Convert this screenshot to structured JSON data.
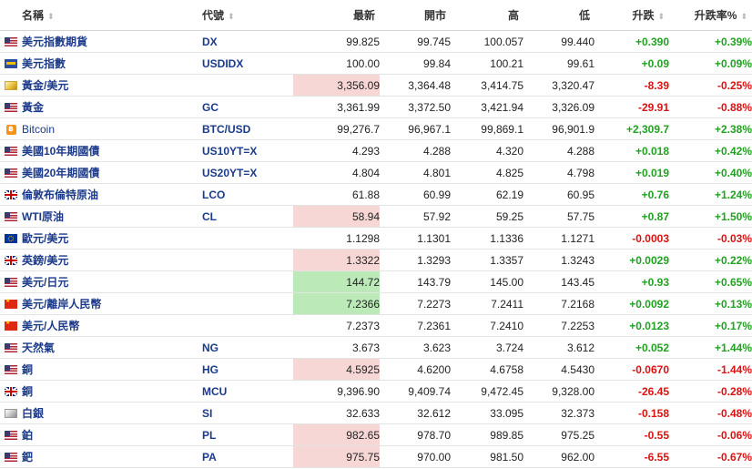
{
  "columns": {
    "name": "名稱",
    "symbol": "代號",
    "last": "最新",
    "open": "開市",
    "high": "高",
    "low": "低",
    "change": "升跌",
    "change_pct": "升跌率%"
  },
  "colors": {
    "up": "#21a121",
    "down": "#dd1111",
    "link": "#1b3a8a",
    "hl_up": "#bbeab8",
    "hl_down": "#f7d6d6"
  },
  "rows": [
    {
      "flag": "us-flag-icon",
      "name": "美元指數期貨",
      "symbol": "DX",
      "last": "99.825",
      "open": "99.745",
      "high": "100.057",
      "low": "99.440",
      "change": "+0.390",
      "change_pct": "+0.39%",
      "dir": "up",
      "highlight": ""
    },
    {
      "flag": "index-flag-icon",
      "name": "美元指數",
      "symbol": "USDIDX",
      "last": "100.00",
      "open": "99.84",
      "high": "100.21",
      "low": "99.61",
      "change": "+0.09",
      "change_pct": "+0.09%",
      "dir": "up",
      "highlight": ""
    },
    {
      "flag": "gold-icon",
      "name": "黃金/美元",
      "symbol": "",
      "last": "3,356.09",
      "open": "3,364.48",
      "high": "3,414.75",
      "low": "3,320.47",
      "change": "-8.39",
      "change_pct": "-0.25%",
      "dir": "down",
      "highlight": "down"
    },
    {
      "flag": "us-flag-icon",
      "name": "黃金",
      "symbol": "GC",
      "last": "3,361.99",
      "open": "3,372.50",
      "high": "3,421.94",
      "low": "3,326.09",
      "change": "-29.91",
      "change_pct": "-0.88%",
      "dir": "down",
      "highlight": ""
    },
    {
      "flag": "bitcoin-icon",
      "name": "Bitcoin",
      "symbol": "BTC/USD",
      "last": "99,276.7",
      "open": "96,967.1",
      "high": "99,869.1",
      "low": "96,901.9",
      "change": "+2,309.7",
      "change_pct": "+2.38%",
      "dir": "up",
      "highlight": "",
      "plain": true
    },
    {
      "flag": "us-flag-icon",
      "name": "美國10年期國債",
      "symbol": "US10YT=X",
      "last": "4.293",
      "open": "4.288",
      "high": "4.320",
      "low": "4.288",
      "change": "+0.018",
      "change_pct": "+0.42%",
      "dir": "up",
      "highlight": ""
    },
    {
      "flag": "us-flag-icon",
      "name": "美國20年期國債",
      "symbol": "US20YT=X",
      "last": "4.804",
      "open": "4.801",
      "high": "4.825",
      "low": "4.798",
      "change": "+0.019",
      "change_pct": "+0.40%",
      "dir": "up",
      "highlight": ""
    },
    {
      "flag": "uk-flag-icon",
      "name": "倫敦布倫特原油",
      "symbol": "LCO",
      "last": "61.88",
      "open": "60.99",
      "high": "62.19",
      "low": "60.95",
      "change": "+0.76",
      "change_pct": "+1.24%",
      "dir": "up",
      "highlight": ""
    },
    {
      "flag": "us-flag-icon",
      "name": "WTI原油",
      "symbol": "CL",
      "last": "58.94",
      "open": "57.92",
      "high": "59.25",
      "low": "57.75",
      "change": "+0.87",
      "change_pct": "+1.50%",
      "dir": "up",
      "highlight": "down"
    },
    {
      "flag": "eu-flag-icon",
      "name": "歐元/美元",
      "symbol": "",
      "last": "1.1298",
      "open": "1.1301",
      "high": "1.1336",
      "low": "1.1271",
      "change": "-0.0003",
      "change_pct": "-0.03%",
      "dir": "down",
      "highlight": ""
    },
    {
      "flag": "uk-flag-icon",
      "name": "英鎊/美元",
      "symbol": "",
      "last": "1.3322",
      "open": "1.3293",
      "high": "1.3357",
      "low": "1.3243",
      "change": "+0.0029",
      "change_pct": "+0.22%",
      "dir": "up",
      "highlight": "down"
    },
    {
      "flag": "us-flag-icon",
      "name": "美元/日元",
      "symbol": "",
      "last": "144.72",
      "open": "143.79",
      "high": "145.00",
      "low": "143.45",
      "change": "+0.93",
      "change_pct": "+0.65%",
      "dir": "up",
      "highlight": "up"
    },
    {
      "flag": "china-flag-icon",
      "name": "美元/離岸人民幣",
      "symbol": "",
      "last": "7.2366",
      "open": "7.2273",
      "high": "7.2411",
      "low": "7.2168",
      "change": "+0.0092",
      "change_pct": "+0.13%",
      "dir": "up",
      "highlight": "up"
    },
    {
      "flag": "china-flag-icon",
      "name": "美元/人民幣",
      "symbol": "",
      "last": "7.2373",
      "open": "7.2361",
      "high": "7.2410",
      "low": "7.2253",
      "change": "+0.0123",
      "change_pct": "+0.17%",
      "dir": "up",
      "highlight": ""
    },
    {
      "flag": "us-flag-icon",
      "name": "天然氣",
      "symbol": "NG",
      "last": "3.673",
      "open": "3.623",
      "high": "3.724",
      "low": "3.612",
      "change": "+0.052",
      "change_pct": "+1.44%",
      "dir": "up",
      "highlight": ""
    },
    {
      "flag": "us-flag-icon",
      "name": "銅",
      "symbol": "HG",
      "last": "4.5925",
      "open": "4.6200",
      "high": "4.6758",
      "low": "4.5430",
      "change": "-0.0670",
      "change_pct": "-1.44%",
      "dir": "down",
      "highlight": "down"
    },
    {
      "flag": "uk-flag-icon",
      "name": "銅",
      "symbol": "MCU",
      "last": "9,396.90",
      "open": "9,409.74",
      "high": "9,472.45",
      "low": "9,328.00",
      "change": "-26.45",
      "change_pct": "-0.28%",
      "dir": "down",
      "highlight": ""
    },
    {
      "flag": "silver-icon",
      "name": "白銀",
      "symbol": "SI",
      "last": "32.633",
      "open": "32.612",
      "high": "33.095",
      "low": "32.373",
      "change": "-0.158",
      "change_pct": "-0.48%",
      "dir": "down",
      "highlight": ""
    },
    {
      "flag": "us-flag-icon",
      "name": "鉑",
      "symbol": "PL",
      "last": "982.65",
      "open": "978.70",
      "high": "989.85",
      "low": "975.25",
      "change": "-0.55",
      "change_pct": "-0.06%",
      "dir": "down",
      "highlight": "down"
    },
    {
      "flag": "us-flag-icon",
      "name": "鈀",
      "symbol": "PA",
      "last": "975.75",
      "open": "970.00",
      "high": "981.50",
      "low": "962.00",
      "change": "-6.55",
      "change_pct": "-0.67%",
      "dir": "down",
      "highlight": "down"
    }
  ]
}
